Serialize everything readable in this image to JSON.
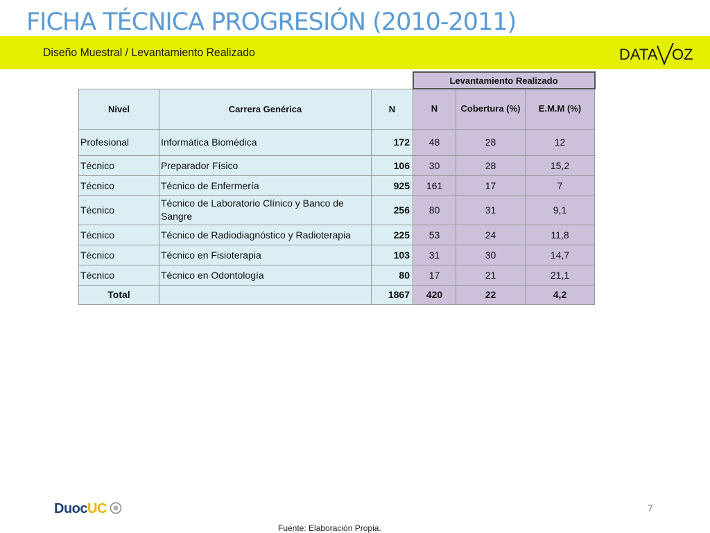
{
  "header": {
    "title": "FICHA TÉCNICA PROGRESIÓN (2010-2011)",
    "subtitle": "Diseño Muestral / Levantamiento Realizado",
    "logo_text_left": "DATA",
    "logo_text_right": "OZ",
    "band_color": "#e5f000"
  },
  "table": {
    "group_header": "Levantamiento Realizado",
    "columns": [
      "Nivel",
      "Carrera Genérica",
      "N",
      "N",
      "Cobertura (%)",
      "E.M.M (%)"
    ],
    "rows": [
      {
        "nivel": "Profesional",
        "carrera": "Informática Biomédica",
        "n": "172",
        "n_real": "48",
        "cobertura": "28",
        "emm": "12"
      },
      {
        "nivel": "Técnico",
        "carrera": "Preparador Físico",
        "n": "106",
        "n_real": "30",
        "cobertura": "28",
        "emm": "15,2"
      },
      {
        "nivel": "Técnico",
        "carrera": "Técnico de Enfermería",
        "n": "925",
        "n_real": "161",
        "cobertura": "17",
        "emm": "7"
      },
      {
        "nivel": "Técnico",
        "carrera": "Técnico de Laboratorio Clínico y Banco de Sangre",
        "n": "256",
        "n_real": "80",
        "cobertura": "31",
        "emm": "9,1"
      },
      {
        "nivel": "Técnico",
        "carrera": "Técnico de Radiodiagnóstico y Radioterapia",
        "n": "225",
        "n_real": "53",
        "cobertura": "24",
        "emm": "11,8"
      },
      {
        "nivel": "Técnico",
        "carrera": "Técnico en Fisioterapia",
        "n": "103",
        "n_real": "31",
        "cobertura": "30",
        "emm": "14,7"
      },
      {
        "nivel": "Técnico",
        "carrera": "Técnico en Odontología",
        "n": "80",
        "n_real": "17",
        "cobertura": "21",
        "emm": "21,1"
      }
    ],
    "total": {
      "label": "Total",
      "carrera": "",
      "n": "1867",
      "n_real": "420",
      "cobertura": "22",
      "emm": "4,2"
    }
  },
  "footer": {
    "page_number": "7",
    "brand_main": "Duoc",
    "brand_accent": "UC",
    "source": "Fuente: Elaboración Propia."
  }
}
